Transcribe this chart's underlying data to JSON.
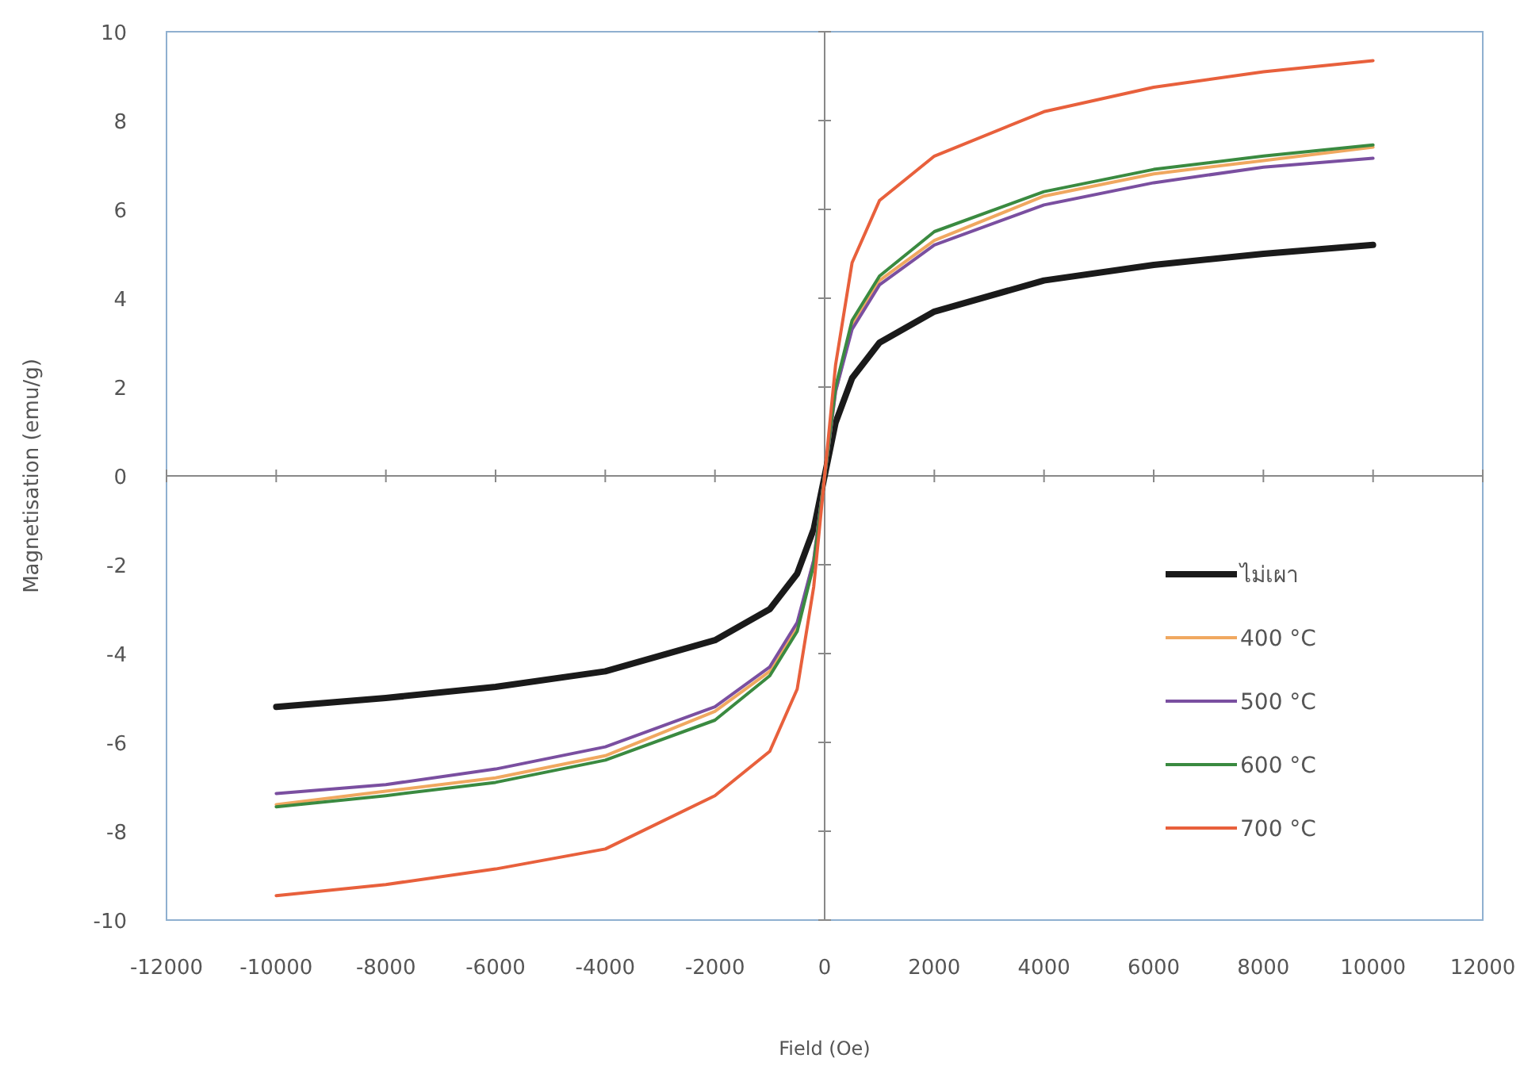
{
  "chart_data": {
    "type": "line",
    "xlabel": "Field (Oe)",
    "ylabel": "Magnetisation (emu/g)",
    "x": [
      -10000,
      -8000,
      -6000,
      -4000,
      -2000,
      -1000,
      -500,
      -200,
      0,
      200,
      500,
      1000,
      2000,
      4000,
      6000,
      8000,
      10000
    ],
    "series": [
      {
        "name": "ไม่เผา",
        "color": "#1a1a1a",
        "values": [
          -5.2,
          -5.0,
          -4.75,
          -4.4,
          -3.7,
          -3.0,
          -2.2,
          -1.2,
          0,
          1.2,
          2.2,
          3.0,
          3.7,
          4.4,
          4.75,
          5.0,
          5.2
        ]
      },
      {
        "name": "400 °C",
        "color": "#f0a860",
        "values": [
          -7.4,
          -7.1,
          -6.8,
          -6.3,
          -5.3,
          -4.4,
          -3.4,
          -1.9,
          0,
          1.9,
          3.4,
          4.4,
          5.3,
          6.3,
          6.8,
          7.1,
          7.4
        ]
      },
      {
        "name": "500 °C",
        "color": "#7a4fa0",
        "values": [
          -7.15,
          -6.95,
          -6.6,
          -6.1,
          -5.2,
          -4.3,
          -3.3,
          -1.9,
          0,
          1.9,
          3.3,
          4.3,
          5.2,
          6.1,
          6.6,
          6.95,
          7.15
        ]
      },
      {
        "name": "600 °C",
        "color": "#3a8a40",
        "values": [
          -7.45,
          -7.2,
          -6.9,
          -6.4,
          -5.5,
          -4.5,
          -3.5,
          -2.0,
          0,
          2.0,
          3.5,
          4.5,
          5.5,
          6.4,
          6.9,
          7.2,
          7.45
        ]
      },
      {
        "name": "700 °C",
        "color": "#e8603c",
        "values": [
          -9.45,
          -9.2,
          -8.85,
          -8.4,
          -7.2,
          -6.2,
          -4.8,
          -2.5,
          0,
          2.5,
          4.8,
          6.2,
          7.2,
          8.2,
          8.75,
          9.1,
          9.35
        ]
      }
    ],
    "xlim": [
      -12000,
      12000
    ],
    "xticks": [
      -12000,
      -10000,
      -8000,
      -6000,
      -4000,
      -2000,
      0,
      2000,
      4000,
      6000,
      8000,
      10000,
      12000
    ],
    "ylim": [
      -10,
      10
    ],
    "yticks": [
      -10,
      -8,
      -6,
      -4,
      -2,
      0,
      2,
      4,
      6,
      8,
      10
    ],
    "legend": "bottom right"
  }
}
